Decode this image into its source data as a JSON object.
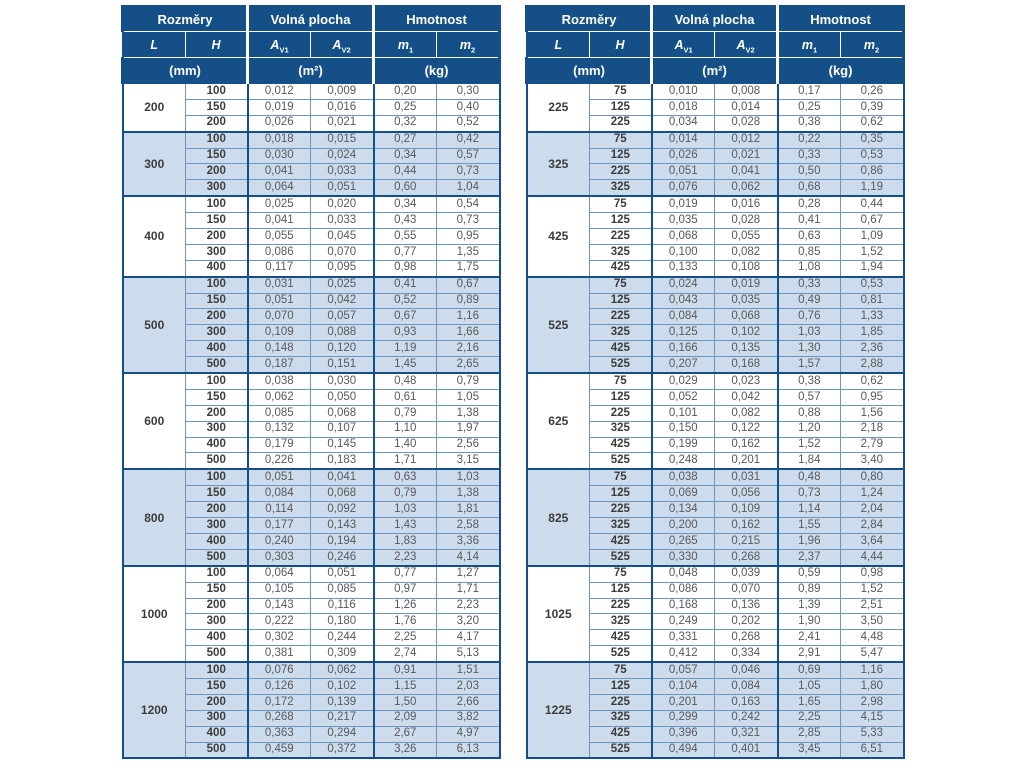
{
  "colors": {
    "header_bg": "#154f87",
    "header_text": "#ffffff",
    "stripe_bg": "#cddcec",
    "border_thin": "#6e95c0",
    "border_thick": "#154f87",
    "value_text": "#58595b",
    "label_text": "#3c3c3b",
    "page_bg": "#ffffff"
  },
  "header": {
    "groups": [
      "Rozměry",
      "Volná plocha",
      "Hmotnost"
    ],
    "cols": [
      {
        "main": "L",
        "sub": ""
      },
      {
        "main": "H",
        "sub": ""
      },
      {
        "main": "A",
        "sub": "V1"
      },
      {
        "main": "A",
        "sub": "V2"
      },
      {
        "main": "m",
        "sub": "1"
      },
      {
        "main": "m",
        "sub": "2"
      }
    ],
    "units": [
      "(mm)",
      "(m²)",
      "(kg)"
    ]
  },
  "tables": [
    {
      "name": "left",
      "groups": [
        {
          "l": "200",
          "shaded": false,
          "rows": [
            [
              "100",
              "0,012",
              "0,009",
              "0,20",
              "0,30"
            ],
            [
              "150",
              "0,019",
              "0,016",
              "0,25",
              "0,40"
            ],
            [
              "200",
              "0,026",
              "0,021",
              "0,32",
              "0,52"
            ]
          ]
        },
        {
          "l": "300",
          "shaded": true,
          "rows": [
            [
              "100",
              "0,018",
              "0,015",
              "0,27",
              "0,42"
            ],
            [
              "150",
              "0,030",
              "0,024",
              "0,34",
              "0,57"
            ],
            [
              "200",
              "0,041",
              "0,033",
              "0,44",
              "0,73"
            ],
            [
              "300",
              "0,064",
              "0,051",
              "0,60",
              "1,04"
            ]
          ]
        },
        {
          "l": "400",
          "shaded": false,
          "rows": [
            [
              "100",
              "0,025",
              "0,020",
              "0,34",
              "0,54"
            ],
            [
              "150",
              "0,041",
              "0,033",
              "0,43",
              "0,73"
            ],
            [
              "200",
              "0,055",
              "0,045",
              "0,55",
              "0,95"
            ],
            [
              "300",
              "0,086",
              "0,070",
              "0,77",
              "1,35"
            ],
            [
              "400",
              "0,117",
              "0,095",
              "0,98",
              "1,75"
            ]
          ]
        },
        {
          "l": "500",
          "shaded": true,
          "rows": [
            [
              "100",
              "0,031",
              "0,025",
              "0,41",
              "0,67"
            ],
            [
              "150",
              "0,051",
              "0,042",
              "0,52",
              "0,89"
            ],
            [
              "200",
              "0,070",
              "0,057",
              "0,67",
              "1,16"
            ],
            [
              "300",
              "0,109",
              "0,088",
              "0,93",
              "1,66"
            ],
            [
              "400",
              "0,148",
              "0,120",
              "1,19",
              "2,16"
            ],
            [
              "500",
              "0,187",
              "0,151",
              "1,45",
              "2,65"
            ]
          ]
        },
        {
          "l": "600",
          "shaded": false,
          "rows": [
            [
              "100",
              "0,038",
              "0,030",
              "0,48",
              "0,79"
            ],
            [
              "150",
              "0,062",
              "0,050",
              "0,61",
              "1,05"
            ],
            [
              "200",
              "0,085",
              "0,068",
              "0,79",
              "1,38"
            ],
            [
              "300",
              "0,132",
              "0,107",
              "1,10",
              "1,97"
            ],
            [
              "400",
              "0,179",
              "0,145",
              "1,40",
              "2,56"
            ],
            [
              "500",
              "0,226",
              "0,183",
              "1,71",
              "3,15"
            ]
          ]
        },
        {
          "l": "800",
          "shaded": true,
          "rows": [
            [
              "100",
              "0,051",
              "0,041",
              "0,63",
              "1,03"
            ],
            [
              "150",
              "0,084",
              "0,068",
              "0,79",
              "1,38"
            ],
            [
              "200",
              "0,114",
              "0,092",
              "1,03",
              "1,81"
            ],
            [
              "300",
              "0,177",
              "0,143",
              "1,43",
              "2,58"
            ],
            [
              "400",
              "0,240",
              "0,194",
              "1,83",
              "3,36"
            ],
            [
              "500",
              "0,303",
              "0,246",
              "2,23",
              "4,14"
            ]
          ]
        },
        {
          "l": "1000",
          "shaded": false,
          "rows": [
            [
              "100",
              "0,064",
              "0,051",
              "0,77",
              "1,27"
            ],
            [
              "150",
              "0,105",
              "0,085",
              "0,97",
              "1,71"
            ],
            [
              "200",
              "0,143",
              "0,116",
              "1,26",
              "2,23"
            ],
            [
              "300",
              "0,222",
              "0,180",
              "1,76",
              "3,20"
            ],
            [
              "400",
              "0,302",
              "0,244",
              "2,25",
              "4,17"
            ],
            [
              "500",
              "0,381",
              "0,309",
              "2,74",
              "5,13"
            ]
          ]
        },
        {
          "l": "1200",
          "shaded": true,
          "rows": [
            [
              "100",
              "0,076",
              "0,062",
              "0,91",
              "1,51"
            ],
            [
              "150",
              "0,126",
              "0,102",
              "1,15",
              "2,03"
            ],
            [
              "200",
              "0,172",
              "0,139",
              "1,50",
              "2,66"
            ],
            [
              "300",
              "0,268",
              "0,217",
              "2,09",
              "3,82"
            ],
            [
              "400",
              "0,363",
              "0,294",
              "2,67",
              "4,97"
            ],
            [
              "500",
              "0,459",
              "0,372",
              "3,26",
              "6,13"
            ]
          ]
        }
      ]
    },
    {
      "name": "right",
      "groups": [
        {
          "l": "225",
          "shaded": false,
          "rows": [
            [
              "75",
              "0,010",
              "0,008",
              "0,17",
              "0,26"
            ],
            [
              "125",
              "0,018",
              "0,014",
              "0,25",
              "0,39"
            ],
            [
              "225",
              "0,034",
              "0,028",
              "0,38",
              "0,62"
            ]
          ]
        },
        {
          "l": "325",
          "shaded": true,
          "rows": [
            [
              "75",
              "0,014",
              "0,012",
              "0,22",
              "0,35"
            ],
            [
              "125",
              "0,026",
              "0,021",
              "0,33",
              "0,53"
            ],
            [
              "225",
              "0,051",
              "0,041",
              "0,50",
              "0,86"
            ],
            [
              "325",
              "0,076",
              "0,062",
              "0,68",
              "1,19"
            ]
          ]
        },
        {
          "l": "425",
          "shaded": false,
          "rows": [
            [
              "75",
              "0,019",
              "0,016",
              "0,28",
              "0,44"
            ],
            [
              "125",
              "0,035",
              "0,028",
              "0,41",
              "0,67"
            ],
            [
              "225",
              "0,068",
              "0,055",
              "0,63",
              "1,09"
            ],
            [
              "325",
              "0,100",
              "0,082",
              "0,85",
              "1,52"
            ],
            [
              "425",
              "0,133",
              "0,108",
              "1,08",
              "1,94"
            ]
          ]
        },
        {
          "l": "525",
          "shaded": true,
          "rows": [
            [
              "75",
              "0,024",
              "0,019",
              "0,33",
              "0,53"
            ],
            [
              "125",
              "0,043",
              "0,035",
              "0,49",
              "0,81"
            ],
            [
              "225",
              "0,084",
              "0,068",
              "0,76",
              "1,33"
            ],
            [
              "325",
              "0,125",
              "0,102",
              "1,03",
              "1,85"
            ],
            [
              "425",
              "0,166",
              "0,135",
              "1,30",
              "2,36"
            ],
            [
              "525",
              "0,207",
              "0,168",
              "1,57",
              "2,88"
            ]
          ]
        },
        {
          "l": "625",
          "shaded": false,
          "rows": [
            [
              "75",
              "0,029",
              "0,023",
              "0,38",
              "0,62"
            ],
            [
              "125",
              "0,052",
              "0,042",
              "0,57",
              "0,95"
            ],
            [
              "225",
              "0,101",
              "0,082",
              "0,88",
              "1,56"
            ],
            [
              "325",
              "0,150",
              "0,122",
              "1,20",
              "2,18"
            ],
            [
              "425",
              "0,199",
              "0,162",
              "1,52",
              "2,79"
            ],
            [
              "525",
              "0,248",
              "0,201",
              "1,84",
              "3,40"
            ]
          ]
        },
        {
          "l": "825",
          "shaded": true,
          "rows": [
            [
              "75",
              "0,038",
              "0,031",
              "0,48",
              "0,80"
            ],
            [
              "125",
              "0,069",
              "0,056",
              "0,73",
              "1,24"
            ],
            [
              "225",
              "0,134",
              "0,109",
              "1,14",
              "2,04"
            ],
            [
              "325",
              "0,200",
              "0,162",
              "1,55",
              "2,84"
            ],
            [
              "425",
              "0,265",
              "0,215",
              "1,96",
              "3,64"
            ],
            [
              "525",
              "0,330",
              "0,268",
              "2,37",
              "4,44"
            ]
          ]
        },
        {
          "l": "1025",
          "shaded": false,
          "rows": [
            [
              "75",
              "0,048",
              "0,039",
              "0,59",
              "0,98"
            ],
            [
              "125",
              "0,086",
              "0,070",
              "0,89",
              "1,52"
            ],
            [
              "225",
              "0,168",
              "0,136",
              "1,39",
              "2,51"
            ],
            [
              "325",
              "0,249",
              "0,202",
              "1,90",
              "3,50"
            ],
            [
              "425",
              "0,331",
              "0,268",
              "2,41",
              "4,48"
            ],
            [
              "525",
              "0,412",
              "0,334",
              "2,91",
              "5,47"
            ]
          ]
        },
        {
          "l": "1225",
          "shaded": true,
          "rows": [
            [
              "75",
              "0,057",
              "0,046",
              "0,69",
              "1,16"
            ],
            [
              "125",
              "0,104",
              "0,084",
              "1,05",
              "1,80"
            ],
            [
              "225",
              "0,201",
              "0,163",
              "1,65",
              "2,98"
            ],
            [
              "325",
              "0,299",
              "0,242",
              "2,25",
              "4,15"
            ],
            [
              "425",
              "0,396",
              "0,321",
              "2,85",
              "5,33"
            ],
            [
              "525",
              "0,494",
              "0,401",
              "3,45",
              "6,51"
            ]
          ]
        }
      ]
    }
  ]
}
